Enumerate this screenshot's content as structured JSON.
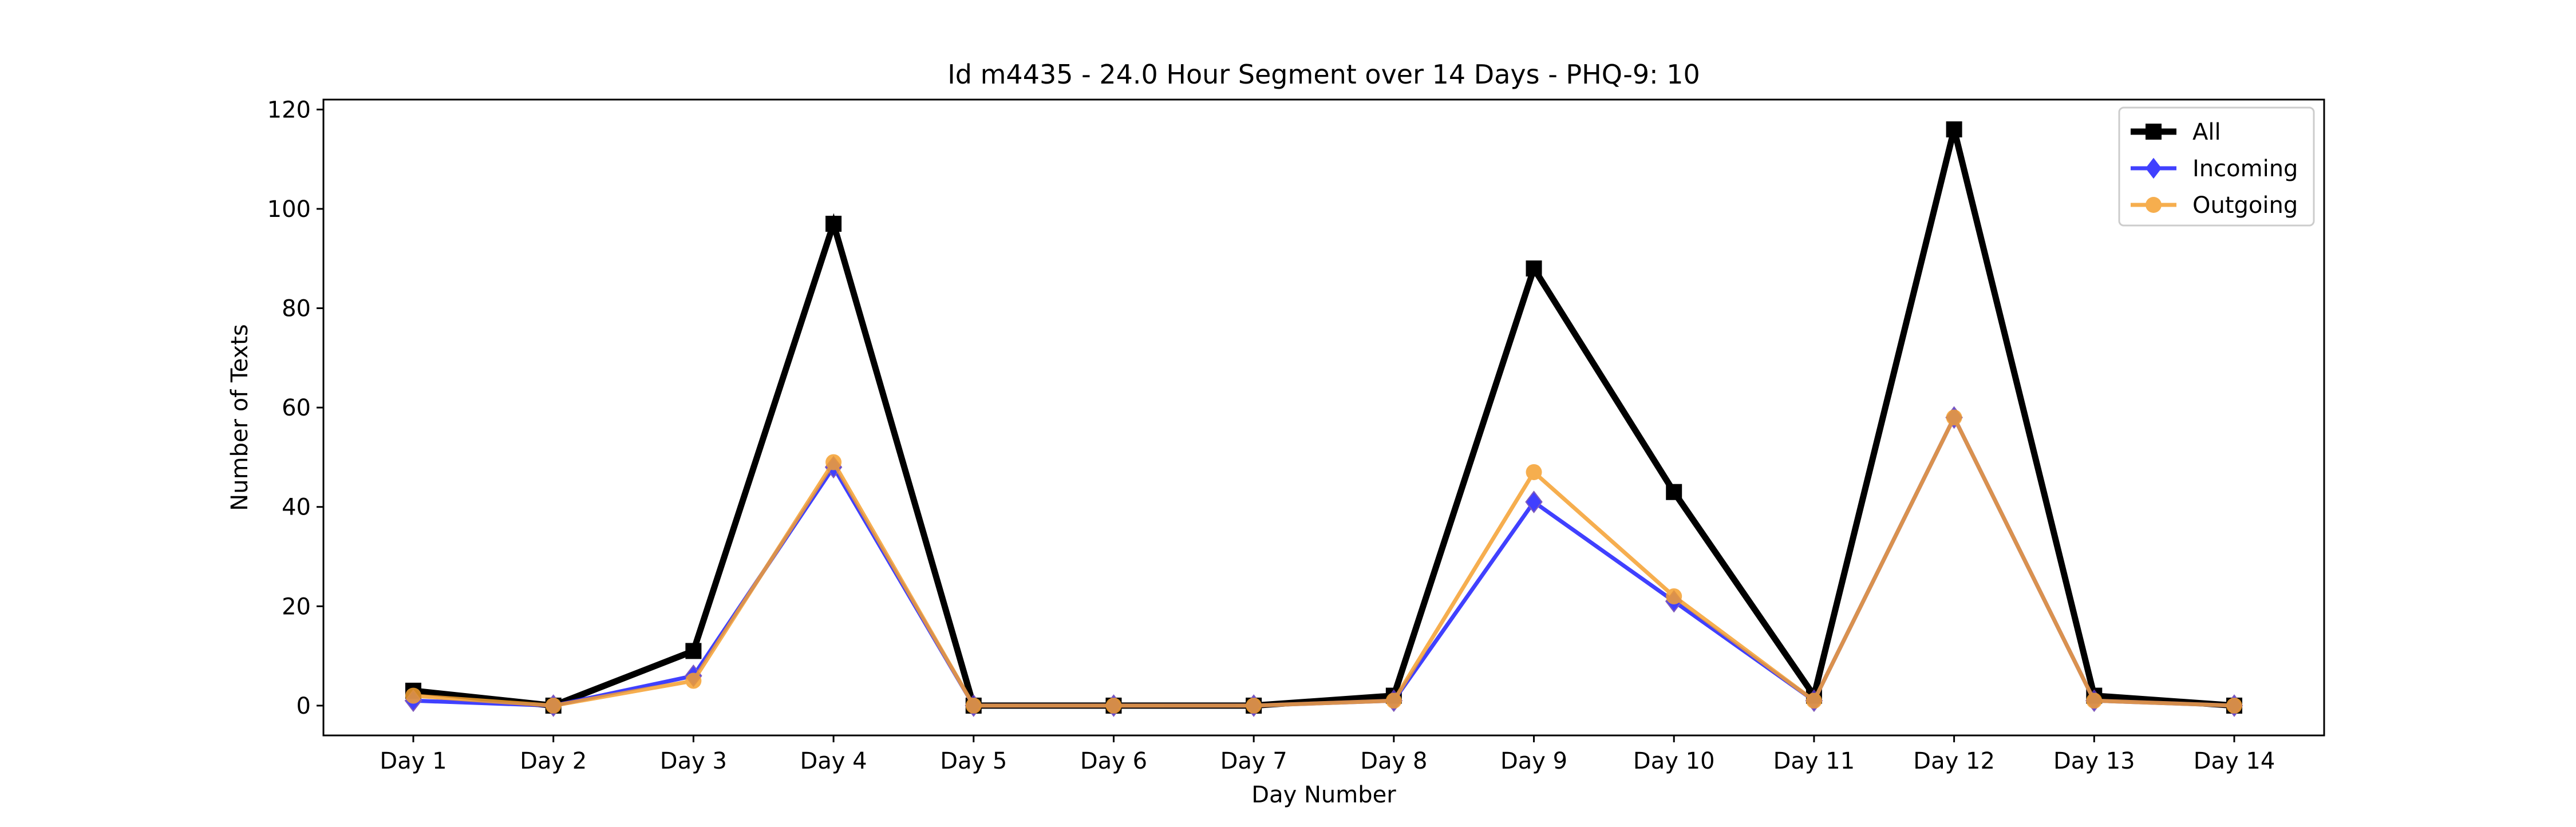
{
  "chart_data": {
    "type": "line",
    "title": "Id m4435 - 24.0 Hour Segment over 14 Days - PHQ-9: 10",
    "xlabel": "Day Number",
    "ylabel": "Number of Texts",
    "categories": [
      "Day 1",
      "Day 2",
      "Day 3",
      "Day 4",
      "Day 5",
      "Day 6",
      "Day 7",
      "Day 8",
      "Day 9",
      "Day 10",
      "Day 11",
      "Day 12",
      "Day 13",
      "Day 14"
    ],
    "ylim": [
      -6,
      122
    ],
    "yticks": [
      0,
      20,
      40,
      60,
      80,
      100,
      120
    ],
    "grid": false,
    "legend_position": "top-right",
    "series": [
      {
        "name": "All",
        "color": "#000000",
        "marker": "square",
        "values": [
          3,
          0,
          11,
          97,
          0,
          0,
          0,
          2,
          88,
          43,
          2,
          116,
          2,
          0
        ]
      },
      {
        "name": "Incoming",
        "color": "#1f1fff",
        "marker": "diamond",
        "values": [
          1,
          0,
          6,
          48,
          0,
          0,
          0,
          1,
          41,
          21,
          1,
          58,
          1,
          0
        ]
      },
      {
        "name": "Outgoing",
        "color": "#f5a030",
        "marker": "circle",
        "values": [
          2,
          0,
          5,
          49,
          0,
          0,
          0,
          1,
          47,
          22,
          1,
          58,
          1,
          0
        ]
      }
    ]
  }
}
